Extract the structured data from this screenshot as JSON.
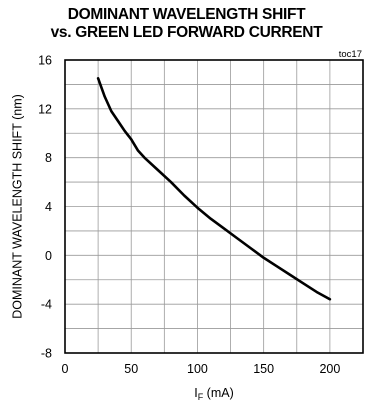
{
  "chart_data": {
    "type": "line",
    "title_line1": "DOMINANT WAVELENGTH SHIFT",
    "title_line2": "vs. GREEN LED FORWARD CURRENT",
    "ref_id": "toc17",
    "xlabel_main": "I",
    "xlabel_sub": "F",
    "xlabel_unit": " (mA)",
    "ylabel": "DOMINANT WAVELENGTH SHIFT (nm)",
    "xlim": [
      0,
      225
    ],
    "ylim": [
      -8,
      16
    ],
    "xticks": [
      0,
      50,
      100,
      150,
      200
    ],
    "yticks": [
      -8,
      -4,
      0,
      4,
      8,
      12,
      16
    ],
    "grid": true,
    "series": [
      {
        "x": [
          25,
          30,
          35,
          40,
          45,
          50,
          55,
          60,
          70,
          80,
          90,
          100,
          110,
          120,
          130,
          140,
          150,
          160,
          170,
          180,
          190,
          200
        ],
        "y": [
          14.5,
          13.0,
          11.8,
          11.0,
          10.2,
          9.5,
          8.6,
          8.0,
          7.0,
          6.0,
          4.9,
          3.9,
          3.0,
          2.2,
          1.4,
          0.6,
          -0.2,
          -0.9,
          -1.6,
          -2.3,
          -3.0,
          -3.6
        ]
      }
    ]
  }
}
